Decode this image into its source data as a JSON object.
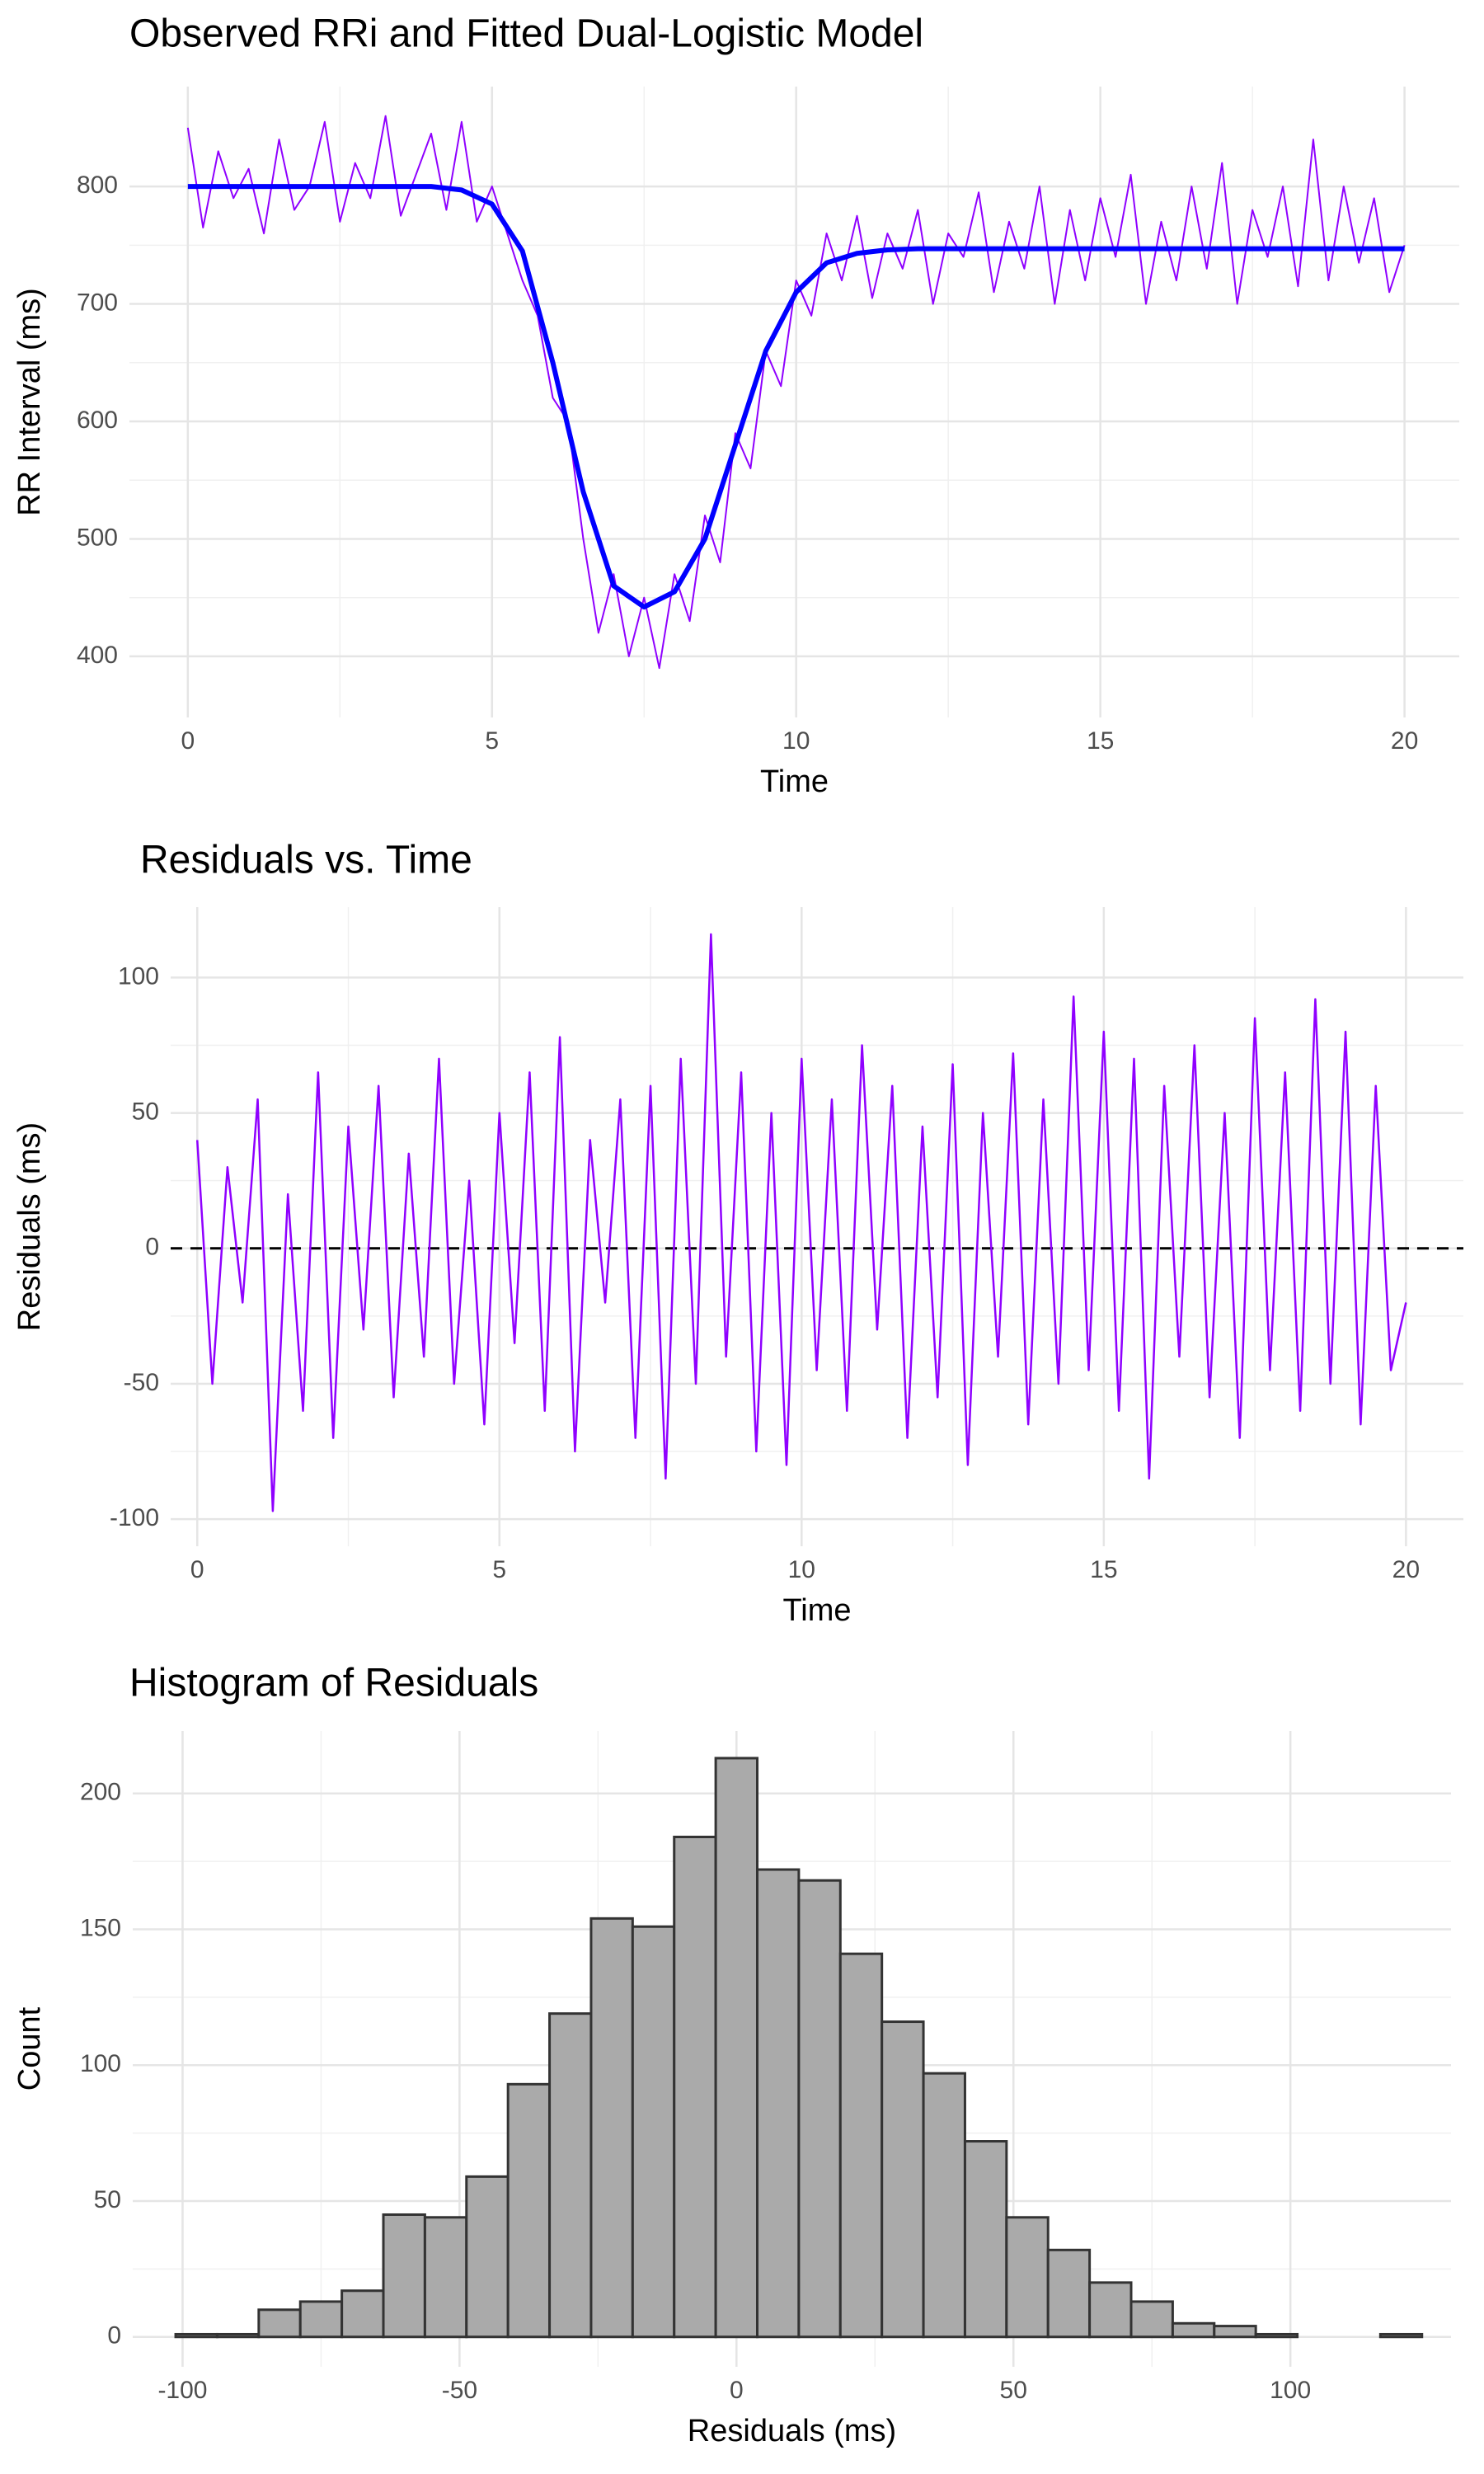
{
  "chart_data": [
    {
      "type": "line",
      "title": "Observed RRi and Fitted Dual-Logistic Model",
      "x_label": "Time",
      "y_label": "RR Interval (ms)",
      "xlim": [
        -0.96,
        20.9
      ],
      "xticks": [
        0,
        5,
        10,
        15,
        20
      ],
      "ylim": [
        348,
        885
      ],
      "yticks": [
        400,
        500,
        600,
        700,
        800
      ],
      "grid": true,
      "series": [
        {
          "color": "#8f00ff",
          "width": 2,
          "x": [
            0,
            0.25,
            0.5,
            0.75,
            1,
            1.25,
            1.5,
            1.75,
            2,
            2.25,
            2.5,
            2.75,
            3,
            3.25,
            3.5,
            3.75,
            4,
            4.25,
            4.5,
            4.75,
            5,
            5.25,
            5.5,
            5.75,
            6,
            6.25,
            6.5,
            6.75,
            7,
            7.25,
            7.5,
            7.75,
            8,
            8.25,
            8.5,
            8.75,
            9,
            9.25,
            9.5,
            9.75,
            10,
            10.25,
            10.5,
            10.75,
            11,
            11.25,
            11.5,
            11.75,
            12,
            12.25,
            12.5,
            12.75,
            13,
            13.25,
            13.5,
            13.75,
            14,
            14.25,
            14.5,
            14.75,
            15,
            15.25,
            15.5,
            15.75,
            16,
            16.25,
            16.5,
            16.75,
            17,
            17.25,
            17.5,
            17.75,
            18,
            18.25,
            18.5,
            18.75,
            19,
            19.25,
            19.5,
            19.75,
            20
          ],
          "values": [
            850,
            765,
            830,
            790,
            815,
            760,
            840,
            780,
            800,
            855,
            770,
            820,
            790,
            860,
            775,
            810,
            845,
            780,
            855,
            770,
            800,
            760,
            720,
            690,
            620,
            600,
            500,
            420,
            470,
            400,
            450,
            390,
            470,
            430,
            520,
            480,
            590,
            560,
            660,
            630,
            720,
            690,
            760,
            720,
            775,
            705,
            760,
            730,
            780,
            700,
            760,
            740,
            795,
            710,
            770,
            730,
            800,
            700,
            780,
            720,
            790,
            740,
            810,
            700,
            770,
            720,
            800,
            730,
            820,
            700,
            780,
            740,
            800,
            715,
            840,
            720,
            800,
            735,
            790,
            710,
            750
          ]
        },
        {
          "color": "#0000ff",
          "width": 6,
          "x": [
            0,
            0.5,
            1,
            1.5,
            2,
            2.5,
            3,
            3.5,
            4,
            4.5,
            5,
            5.5,
            6,
            6.5,
            7,
            7.5,
            8,
            8.5,
            9,
            9.5,
            10,
            10.5,
            11,
            11.5,
            12,
            12.5,
            13,
            13.5,
            14,
            14.5,
            15,
            15.5,
            16,
            16.5,
            17,
            17.5,
            18,
            18.5,
            19,
            19.5,
            20
          ],
          "values": [
            800,
            800,
            800,
            800,
            800,
            800,
            800,
            800,
            800,
            797,
            785,
            745,
            650,
            540,
            460,
            442,
            455,
            500,
            580,
            660,
            710,
            735,
            743,
            746,
            747,
            747,
            747,
            747,
            747,
            747,
            747,
            747,
            747,
            747,
            747,
            747,
            747,
            747,
            747,
            747,
            747
          ]
        }
      ]
    },
    {
      "type": "line",
      "title": "Residuals vs. Time",
      "x_label": "Time",
      "y_label": "Residuals (ms)",
      "xlim": [
        -0.44,
        20.95
      ],
      "xticks": [
        0,
        5,
        10,
        15,
        20
      ],
      "ylim": [
        -110,
        126
      ],
      "yticks": [
        -100,
        -50,
        0,
        50,
        100
      ],
      "grid": true,
      "hline": 0,
      "series": [
        {
          "color": "#8f00ff",
          "width": 2.5,
          "x": [
            0,
            0.25,
            0.5,
            0.75,
            1,
            1.25,
            1.5,
            1.75,
            2,
            2.25,
            2.5,
            2.75,
            3,
            3.25,
            3.5,
            3.75,
            4,
            4.25,
            4.5,
            4.75,
            5,
            5.25,
            5.5,
            5.75,
            6,
            6.25,
            6.5,
            6.75,
            7,
            7.25,
            7.5,
            7.75,
            8,
            8.25,
            8.5,
            8.75,
            9,
            9.25,
            9.5,
            9.75,
            10,
            10.25,
            10.5,
            10.75,
            11,
            11.25,
            11.5,
            11.75,
            12,
            12.25,
            12.5,
            12.75,
            13,
            13.25,
            13.5,
            13.75,
            14,
            14.25,
            14.5,
            14.75,
            15,
            15.25,
            15.5,
            15.75,
            16,
            16.25,
            16.5,
            16.75,
            17,
            17.25,
            17.5,
            17.75,
            18,
            18.25,
            18.5,
            18.75,
            19,
            19.25,
            19.5,
            19.75,
            20
          ],
          "values": [
            40,
            -50,
            30,
            -20,
            55,
            -97,
            20,
            -60,
            65,
            -70,
            45,
            -30,
            60,
            -55,
            35,
            -40,
            70,
            -50,
            25,
            -65,
            50,
            -35,
            65,
            -60,
            78,
            -75,
            40,
            -20,
            55,
            -70,
            60,
            -85,
            70,
            -50,
            116,
            -40,
            65,
            -75,
            50,
            -80,
            70,
            -45,
            55,
            -60,
            75,
            -30,
            60,
            -70,
            45,
            -55,
            68,
            -80,
            50,
            -40,
            72,
            -65,
            55,
            -50,
            93,
            -45,
            80,
            -60,
            70,
            -85,
            60,
            -40,
            75,
            -55,
            50,
            -70,
            85,
            -45,
            65,
            -60,
            92,
            -50,
            80,
            -65,
            60,
            -45,
            -20
          ]
        }
      ]
    },
    {
      "type": "histogram",
      "title": "Histogram of Residuals",
      "x_label": "Residuals (ms)",
      "y_label": "Count",
      "xlim": [
        -109,
        129
      ],
      "xticks": [
        -100,
        -50,
        0,
        50,
        100
      ],
      "ylim": [
        -11,
        223
      ],
      "yticks": [
        0,
        50,
        100,
        150,
        200
      ],
      "grid": true,
      "color": "#aaaaaa",
      "edge_color": "#333333",
      "bins": [
        -101.25,
        -93.75,
        -86.25,
        -78.75,
        -71.25,
        -63.75,
        -56.25,
        -48.75,
        -41.25,
        -33.75,
        -26.25,
        -18.75,
        -11.25,
        -3.75,
        3.75,
        11.25,
        18.75,
        26.25,
        33.75,
        41.25,
        48.75,
        56.25,
        63.75,
        71.25,
        78.75,
        86.25,
        93.75,
        101.25,
        108.75,
        116.25,
        123.75
      ],
      "counts": [
        1,
        1,
        10,
        13,
        17,
        45,
        44,
        59,
        93,
        119,
        154,
        151,
        184,
        213,
        172,
        168,
        141,
        116,
        97,
        72,
        44,
        32,
        20,
        13,
        5,
        4,
        1,
        0,
        0,
        1
      ]
    }
  ]
}
